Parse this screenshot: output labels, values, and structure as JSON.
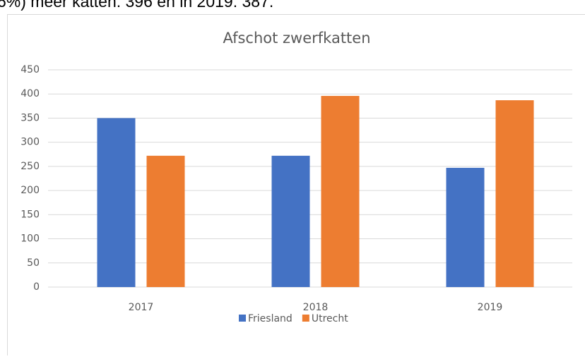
{
  "caption": "6%) meer katten: 396 en in 2019: 387.",
  "chart_data": {
    "type": "bar",
    "title": "Afschot zwerfkatten",
    "categories": [
      "2017",
      "2018",
      "2019"
    ],
    "series": [
      {
        "name": "Friesland",
        "color": "#4472c4",
        "values": [
          350,
          272,
          247
        ]
      },
      {
        "name": "Utrecht",
        "color": "#ed7d31",
        "values": [
          272,
          396,
          387
        ]
      }
    ],
    "ylim": [
      0,
      450
    ],
    "yticks": [
      0,
      50,
      100,
      150,
      200,
      250,
      300,
      350,
      400,
      450
    ],
    "grid": true,
    "legend": "bottom"
  }
}
